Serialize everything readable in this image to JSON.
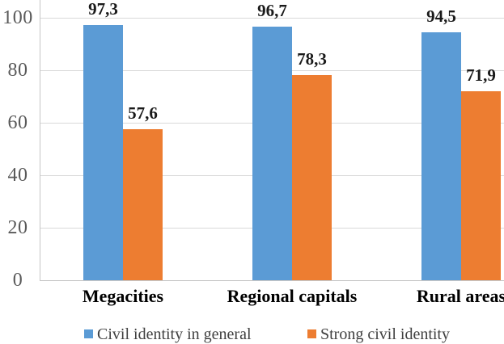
{
  "chart_data": {
    "type": "bar",
    "categories": [
      "Megacities",
      "Regional capitals",
      "Rural areas"
    ],
    "series": [
      {
        "name": "Civil identity in general",
        "color": "#5B9BD5",
        "values": [
          97.3,
          96.7,
          94.5
        ],
        "value_labels": [
          "97,3",
          "96,7",
          "94,5"
        ]
      },
      {
        "name": "Strong civil identity",
        "color": "#ED7D31",
        "values": [
          57.6,
          78.3,
          71.9
        ],
        "value_labels": [
          "57,6",
          "78,3",
          "71,9"
        ]
      }
    ],
    "title": "",
    "xlabel": "",
    "ylabel": "",
    "ylim": [
      0,
      100
    ],
    "yticks": [
      0,
      20,
      40,
      60,
      80,
      100
    ],
    "ytick_labels": [
      "0",
      "20",
      "40",
      "60",
      "80",
      "100"
    ],
    "grid": true,
    "legend_position": "bottom",
    "decimal_separator": ","
  },
  "legend": {
    "items": [
      {
        "label": "Civil identity in general",
        "swatch_color": "#5B9BD5"
      },
      {
        "label": "Strong civil identity",
        "swatch_color": "#ED7D31"
      }
    ]
  },
  "colors": {
    "series_blue": "#5B9BD5",
    "series_orange": "#ED7D31",
    "gridline": "#D9D9D9",
    "axis_line": "#C6C6C6",
    "tick_text": "#595959",
    "value_label_text": "#1A1A1A",
    "category_label_text": "#000000",
    "legend_text": "#404040",
    "background": "#FFFFFF"
  }
}
